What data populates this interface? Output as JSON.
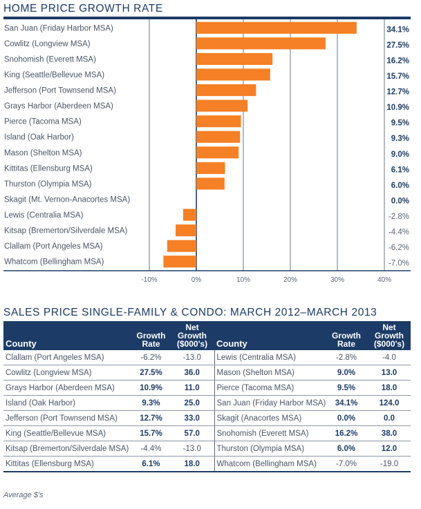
{
  "chart_title": "HOME PRICE GROWTH RATE",
  "table_title": "SALES PRICE SINGLE-FAMILY & CONDO: MARCH 2012–MARCH 2013",
  "colors": {
    "bar": "#f58025",
    "navy": "#1c3b66",
    "grid": "#5a6678"
  },
  "chart_data": {
    "type": "bar",
    "orientation": "horizontal",
    "title": "HOME PRICE GROWTH RATE",
    "xlabel": "",
    "ylabel": "",
    "xlim": [
      -10,
      40
    ],
    "grid": true,
    "x_ticks": [
      "-10%",
      "0%",
      "10%",
      "20%",
      "30%",
      "40%"
    ],
    "x_tick_values": [
      -10,
      0,
      10,
      20,
      30,
      40
    ],
    "categories": [
      "San Juan (Friday Harbor MSA)",
      "Cowlitz (Longview MSA)",
      "Snohomish (Everett MSA)",
      "King (Seattle/Bellevue MSA)",
      "Jefferson (Port Townsend MSA)",
      "Grays Harbor (Aberdeen MSA)",
      "Pierce (Tacoma MSA)",
      "Island (Oak Harbor)",
      "Mason (Shelton MSA)",
      "Kittitas (Ellensburg MSA)",
      "Thurston (Olympia MSA)",
      "Skagit (Mt. Vernon-Anacortes MSA)",
      "Lewis (Centralia MSA)",
      "Kitsap (Bremerton/Silverdale MSA)",
      "Clallam (Port Angeles MSA)",
      "Whatcom (Bellingham MSA)"
    ],
    "values": [
      34.1,
      27.5,
      16.2,
      15.7,
      12.7,
      10.9,
      9.5,
      9.3,
      9.0,
      6.1,
      6.0,
      0.0,
      -2.8,
      -4.4,
      -6.2,
      -7.0
    ],
    "value_labels": [
      "34.1%",
      "27.5%",
      "16.2%",
      "15.7%",
      "12.7%",
      "10.9%",
      "9.5%",
      "9.3%",
      "9.0%",
      "6.1%",
      "6.0%",
      "0.0%",
      "-2.8%",
      "-4.4%",
      "-6.2%",
      "-7.0%"
    ]
  },
  "table": {
    "headers": {
      "county": "County",
      "growth_rate_1": "Growth",
      "growth_rate_2": "Rate",
      "net_growth_1": "Net",
      "net_growth_2": "Growth",
      "net_growth_3": "($000's)"
    },
    "rows": [
      {
        "left": [
          "Clallam (Port Angeles MSA)",
          "-6.2%",
          "-13.0"
        ],
        "right": [
          "Lewis (Centralia MSA)",
          "-2.8%",
          "-4.0"
        ]
      },
      {
        "left": [
          "Cowlitz (Longview MSA)",
          "27.5%",
          "36.0"
        ],
        "right": [
          "Mason (Shelton MSA)",
          "9.0%",
          "13.0"
        ]
      },
      {
        "left": [
          "Grays Harbor (Aberdeen MSA)",
          "10.9%",
          "11.0"
        ],
        "right": [
          "Pierce (Tacoma MSA)",
          "9.5%",
          "18.0"
        ]
      },
      {
        "left": [
          "Island (Oak Harbor)",
          "9.3%",
          "25.0"
        ],
        "right": [
          "San Juan (Friday Harbor MSA)",
          "34.1%",
          "124.0"
        ]
      },
      {
        "left": [
          "Jefferson (Port Townsend MSA)",
          "12.7%",
          "33.0"
        ],
        "right": [
          "Skagit (Anacortes MSA)",
          "0.0%",
          "0.0"
        ]
      },
      {
        "left": [
          "King (Seattle/Bellevue MSA)",
          "15.7%",
          "57.0"
        ],
        "right": [
          "Snohomish (Everett MSA)",
          "16.2%",
          "38.0"
        ]
      },
      {
        "left": [
          "Kitsap (Bremerton/Silverdale MSA)",
          "-4.4%",
          "-13.0"
        ],
        "right": [
          "Thurston (Olympia MSA)",
          "6.0%",
          "12.0"
        ]
      },
      {
        "left": [
          "Kittitas (Ellensburg MSA)",
          "6.1%",
          "18.0"
        ],
        "right": [
          "Whatcom (Bellingham MSA)",
          "-7.0%",
          "-19.0"
        ]
      }
    ]
  },
  "footnote": "Average $'s"
}
